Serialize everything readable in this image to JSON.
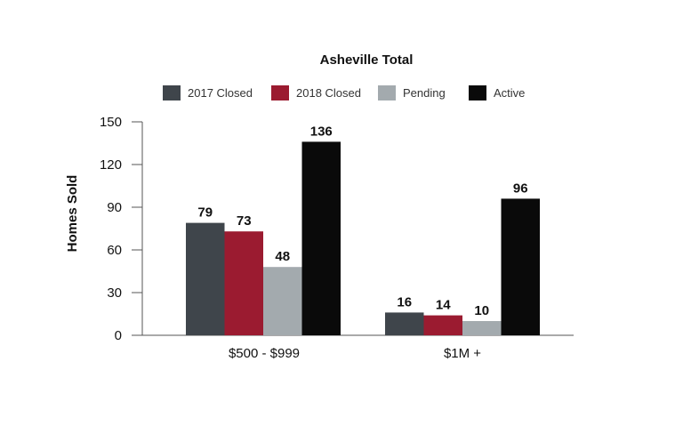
{
  "chart_data": {
    "type": "bar",
    "title": "Asheville Total",
    "xlabel": "",
    "ylabel": "Homes Sold",
    "categories": [
      "$500 - $999",
      "$1M +"
    ],
    "series": [
      {
        "name": "2017 Closed",
        "color": "#3f454b",
        "values": [
          79,
          16
        ]
      },
      {
        "name": "2018 Closed",
        "color": "#9b1b30",
        "values": [
          73,
          14
        ]
      },
      {
        "name": "Pending",
        "color": "#a3aaae",
        "values": [
          48,
          10
        ]
      },
      {
        "name": "Active",
        "color": "#0a0a0a",
        "values": [
          136,
          96
        ]
      }
    ],
    "ylim": [
      0,
      150
    ],
    "yticks": [
      0,
      30,
      60,
      90,
      120,
      150
    ],
    "legend_position": "top",
    "grid": false
  }
}
